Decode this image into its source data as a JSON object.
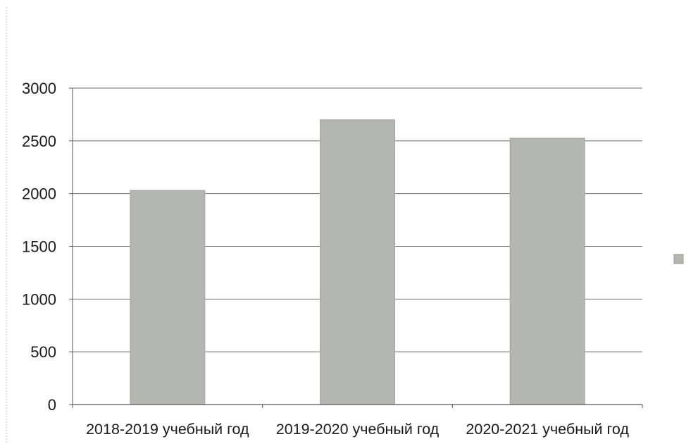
{
  "chart_data": {
    "type": "bar",
    "title": "",
    "xlabel": "",
    "ylabel": "",
    "categories": [
      "2018-2019 учебный год",
      "2019-2020 учебный год",
      "2020-2021 учебный год"
    ],
    "values": [
      2030,
      2700,
      2525
    ],
    "ylim": [
      0,
      3000
    ],
    "yticks": [
      0,
      500,
      1000,
      1500,
      2000,
      2500,
      3000
    ],
    "grid": true,
    "legend": "right",
    "bar_color": "#b4b6b2",
    "legend_swatch_color": "#b4b6b2"
  }
}
